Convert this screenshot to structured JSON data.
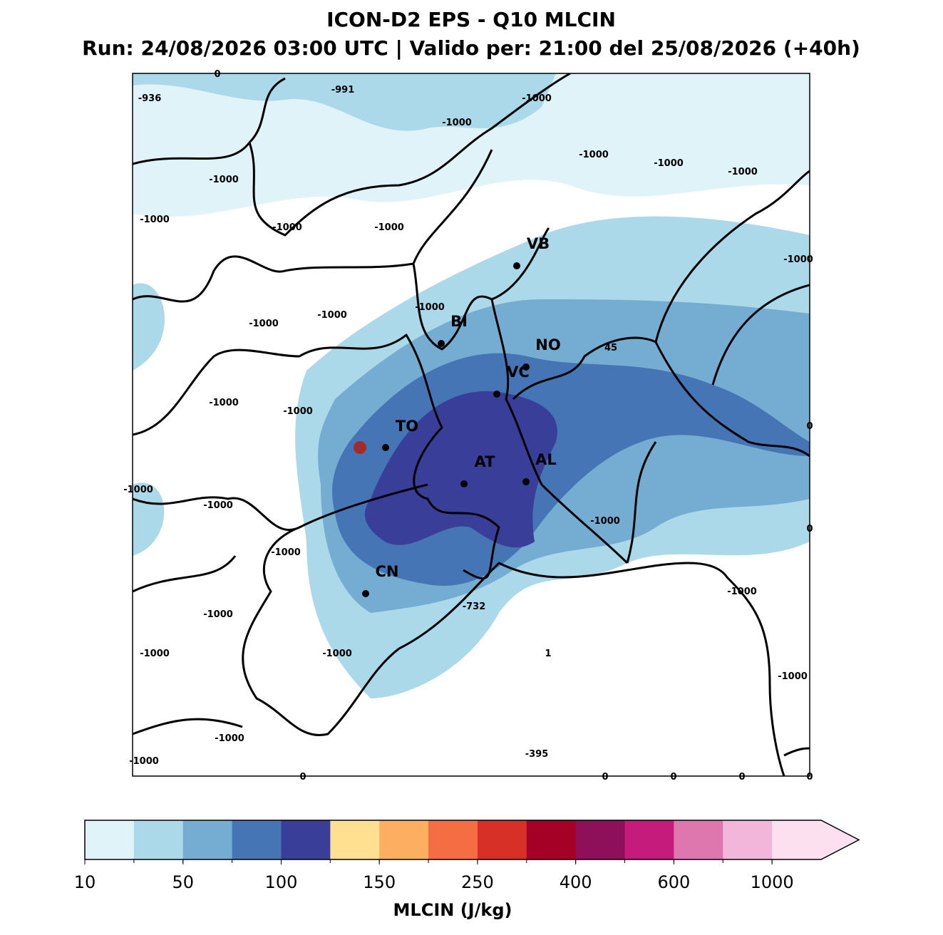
{
  "header": {
    "title": "ICON-D2 EPS - Q10 MLCIN",
    "subtitle": "Run: 24/08/2026 03:00 UTC | Valido per: 21:00 del 25/08/2026 (+40h)"
  },
  "map": {
    "cities": [
      "VB",
      "BI",
      "NO",
      "VC",
      "TO",
      "AT",
      "AL",
      "CN"
    ],
    "labels": [
      "0",
      "-936",
      "-991",
      "-1000",
      "-1000",
      "-1000",
      "-1000",
      "-1000",
      "-1000",
      "-1000",
      "-1000",
      "-1000",
      "-1000",
      "-1000",
      "-1000",
      "-1000",
      "45",
      "-1000",
      "-1000",
      "0",
      "-1000",
      "-1000",
      "-1000",
      "0",
      "-1000",
      "-1000",
      "-732",
      "-1000",
      "-1000",
      "-1000",
      "1",
      "-1000",
      "-1000",
      "-395",
      "-1000",
      "0",
      "0",
      "0",
      "0",
      "0"
    ]
  },
  "colorbar": {
    "colors": [
      "#e0f3f8",
      "#abd9e9",
      "#74add1",
      "#4575b4",
      "#393f98",
      "#fee090",
      "#fdae61",
      "#f46d43",
      "#d73027",
      "#a50026",
      "#8e0f5a",
      "#c51b7d",
      "#de77ae",
      "#f1b6da",
      "#fde0ef"
    ],
    "ticks": [
      10,
      50,
      100,
      150,
      250,
      400,
      600,
      1000
    ],
    "label": "MLCIN (J/kg)"
  }
}
